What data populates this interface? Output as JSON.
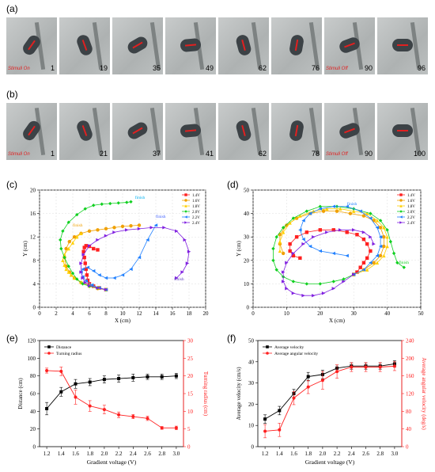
{
  "panels": {
    "a": "(a)",
    "b": "(b)",
    "c": "(c)",
    "d": "(d)",
    "e": "(e)",
    "f": "(f)"
  },
  "frames_a": {
    "numbers": [
      "1",
      "19",
      "35",
      "49",
      "62",
      "76",
      "90",
      "96"
    ],
    "stim_on": "Stimuli On",
    "stim_off": "Stimuli Off",
    "stim_on_index": 0,
    "stim_off_index": 6
  },
  "frames_b": {
    "numbers": [
      "1",
      "21",
      "37",
      "41",
      "62",
      "78",
      "90",
      "100"
    ],
    "stim_on": "Stimuli On",
    "stim_off": "Stimuli Off",
    "stim_on_index": 0,
    "stim_off_index": 6
  },
  "chart_data": [
    {
      "id": "c",
      "type": "scatter",
      "xlabel": "X (cm)",
      "ylabel": "Y (cm)",
      "xlim": [
        0,
        20
      ],
      "ylim": [
        0,
        20
      ],
      "xticks": [
        "0",
        "2",
        "4",
        "6",
        "8",
        "10",
        "12",
        "14",
        "16",
        "18",
        "20"
      ],
      "yticks": [
        "0",
        "4",
        "8",
        "12",
        "16",
        "20"
      ],
      "legend_position": "top-right",
      "annotations": [
        {
          "text": "finish",
          "x": 11.5,
          "y": 18.5,
          "color": "#00b0f0"
        },
        {
          "text": "finish",
          "x": 4.0,
          "y": 13.8,
          "color": "#f0a000"
        },
        {
          "text": "finish",
          "x": 14.0,
          "y": 15.3,
          "color": "#4060ff"
        },
        {
          "text": "finish",
          "x": 16.2,
          "y": 4.6,
          "color": "#6040c0"
        }
      ],
      "series": [
        {
          "name": "1.4V",
          "color": "#ff2020",
          "marker": "square",
          "x": [
            8.0,
            7.2,
            6.5,
            6.0,
            5.8,
            5.7,
            5.6,
            5.5,
            5.4,
            5.3,
            5.4,
            5.6,
            6.0,
            6.5,
            7.0
          ],
          "y": [
            3.0,
            3.3,
            3.6,
            4.0,
            4.6,
            5.5,
            6.5,
            7.5,
            8.5,
            9.5,
            10.2,
            10.5,
            10.4,
            10.0,
            9.8
          ]
        },
        {
          "name": "1.6V",
          "color": "#f0a000",
          "marker": "circle",
          "x": [
            8.0,
            7.0,
            6.0,
            5.0,
            4.2,
            3.6,
            3.2,
            3.0,
            3.2,
            3.6,
            4.2,
            5.0,
            6.0,
            7.0,
            8.0,
            9.0,
            10.0,
            11.0,
            12.0
          ],
          "y": [
            3.0,
            3.2,
            3.6,
            4.2,
            5.0,
            6.0,
            7.0,
            8.5,
            10.0,
            11.2,
            12.0,
            12.6,
            13.0,
            13.2,
            13.4,
            13.6,
            13.8,
            13.9,
            14.0
          ]
        },
        {
          "name": "1.8V",
          "color": "#ffd000",
          "marker": "triangle",
          "x": [
            8.0,
            7.0,
            6.0,
            5.0,
            4.2,
            3.8,
            3.5,
            3.2,
            3.0,
            2.8,
            3.0,
            3.5,
            4.0,
            4.5,
            5.0
          ],
          "y": [
            3.0,
            3.4,
            3.8,
            4.3,
            5.0,
            5.5,
            6.0,
            6.5,
            7.2,
            8.0,
            9.0,
            10.0,
            11.0,
            12.0,
            12.6
          ]
        },
        {
          "name": "2.0V",
          "color": "#10d020",
          "marker": "diamond",
          "x": [
            8.0,
            7.0,
            6.0,
            5.2,
            4.5,
            4.0,
            3.5,
            3.0,
            2.6,
            2.5,
            2.8,
            3.5,
            4.5,
            5.5,
            6.5,
            7.5,
            8.5,
            9.5,
            10.5,
            11.0
          ],
          "y": [
            3.0,
            3.3,
            3.6,
            4.0,
            4.8,
            5.8,
            7.0,
            8.5,
            10.0,
            11.5,
            13.0,
            14.5,
            15.8,
            16.8,
            17.4,
            17.6,
            17.7,
            17.8,
            17.9,
            18.0
          ]
        },
        {
          "name": "2.2V",
          "color": "#2080ff",
          "marker": "triangle-left",
          "x": [
            8.0,
            7.2,
            6.3,
            5.6,
            5.2,
            5.0,
            5.2,
            5.8,
            6.5,
            7.2,
            8.0,
            9.0,
            10.0,
            11.0,
            12.0,
            13.0,
            14.0
          ],
          "y": [
            3.0,
            3.3,
            3.8,
            4.5,
            5.2,
            6.0,
            6.5,
            6.8,
            6.2,
            5.5,
            5.0,
            5.0,
            5.5,
            6.5,
            8.5,
            11.5,
            14.0
          ]
        },
        {
          "name": "2.4V",
          "color": "#8020e0",
          "marker": "triangle-right",
          "x": [
            8.0,
            7.0,
            6.0,
            5.5,
            5.2,
            5.0,
            5.0,
            5.3,
            6.0,
            7.0,
            8.0,
            9.0,
            10.5,
            12.0,
            13.5,
            15.0,
            16.5,
            17.5,
            18.0,
            17.8,
            17.2,
            16.5
          ],
          "y": [
            3.0,
            3.3,
            3.7,
            4.2,
            5.0,
            6.0,
            7.5,
            9.0,
            10.5,
            11.5,
            12.2,
            12.8,
            13.2,
            13.4,
            13.6,
            13.6,
            13.0,
            11.5,
            9.5,
            7.5,
            6.0,
            5.0
          ]
        }
      ]
    },
    {
      "id": "d",
      "type": "scatter",
      "xlabel": "X (cm)",
      "ylabel": "Y (cm)",
      "xlim": [
        0,
        50
      ],
      "ylim": [
        0,
        50
      ],
      "xticks": [
        "0",
        "10",
        "20",
        "30",
        "40",
        "50"
      ],
      "yticks": [
        "0",
        "10",
        "20",
        "30",
        "40",
        "50"
      ],
      "legend_position": "top-right",
      "annotations": [
        {
          "text": "finish",
          "x": 28,
          "y": 43.5,
          "color": "#2080ff"
        },
        {
          "text": "finish",
          "x": 43.5,
          "y": 18.5,
          "color": "#10d020"
        }
      ],
      "series": [
        {
          "name": "1.4V",
          "color": "#ff2020",
          "marker": "square",
          "x": [
            30,
            31,
            32,
            33,
            34,
            35,
            34,
            33,
            31,
            28,
            24,
            20,
            16,
            13,
            11,
            11,
            12,
            14
          ],
          "y": [
            14,
            15,
            17,
            19,
            21,
            24,
            27,
            29,
            31,
            32,
            33,
            33,
            32,
            30,
            27,
            24,
            22,
            21
          ]
        },
        {
          "name": "1.6V",
          "color": "#f0a000",
          "marker": "circle",
          "x": [
            30,
            33,
            36,
            38,
            39,
            39,
            38,
            36,
            33,
            29,
            25,
            21,
            17,
            13,
            10,
            8,
            8,
            9
          ],
          "y": [
            14,
            16,
            19,
            22,
            26,
            30,
            34,
            37,
            39,
            40,
            41,
            41,
            40,
            38,
            35,
            31,
            27,
            23
          ]
        },
        {
          "name": "1.8V",
          "color": "#ffd000",
          "marker": "triangle",
          "x": [
            30,
            34,
            37,
            39,
            40,
            40,
            39,
            37,
            34,
            30,
            26,
            22,
            18,
            14,
            11,
            9,
            8,
            8
          ],
          "y": [
            14,
            16,
            19,
            22,
            26,
            30,
            34,
            37,
            40,
            41,
            42,
            42,
            41,
            39,
            36,
            32,
            28,
            24
          ]
        },
        {
          "name": "2.0V",
          "color": "#10d020",
          "marker": "diamond",
          "x": [
            30,
            27,
            24,
            20,
            16,
            12,
            9,
            7,
            6,
            6,
            7,
            9,
            12,
            16,
            20,
            25,
            30,
            35,
            38,
            40,
            41,
            42,
            43,
            45
          ],
          "y": [
            14,
            12,
            11,
            10,
            10,
            11,
            13,
            16,
            20,
            25,
            30,
            34,
            38,
            41,
            43,
            43,
            42,
            40,
            37,
            33,
            28,
            23,
            19,
            17
          ]
        },
        {
          "name": "2.2V",
          "color": "#2080ff",
          "marker": "triangle-left",
          "x": [
            30,
            33,
            35,
            37,
            38,
            38,
            37,
            35,
            32,
            28,
            24,
            20,
            17,
            15,
            14,
            15,
            17,
            20,
            24,
            28
          ],
          "y": [
            14,
            16,
            19,
            22,
            26,
            30,
            34,
            38,
            41,
            43,
            43,
            42,
            40,
            37,
            33,
            29,
            26,
            24,
            23,
            22
          ]
        },
        {
          "name": "2.4V",
          "color": "#8020e0",
          "marker": "triangle-right",
          "x": [
            30,
            27,
            24,
            21,
            18,
            15,
            12,
            10,
            9,
            9,
            10,
            12,
            15,
            18,
            22,
            26,
            30,
            33,
            35,
            36
          ],
          "y": [
            14,
            11,
            8,
            6,
            5,
            5,
            6,
            8,
            11,
            15,
            19,
            23,
            27,
            30,
            32,
            33,
            33,
            32,
            30,
            27
          ]
        }
      ]
    },
    {
      "id": "e",
      "type": "line",
      "xlabel": "Gradient voltage (V)",
      "ylabel": "Distance (cm)",
      "y2label": "Turning radius (cm)",
      "x": [
        1.2,
        1.4,
        1.6,
        1.8,
        2.0,
        2.2,
        2.4,
        2.6,
        2.8,
        3.0
      ],
      "xticks": [
        "1.2",
        "1.4",
        "1.6",
        "1.8",
        "2.0",
        "2.2",
        "2.4",
        "2.6",
        "2.8",
        "3.0"
      ],
      "ylim": [
        0,
        120
      ],
      "yticks": [
        "0",
        "20",
        "40",
        "60",
        "80",
        "100",
        "120"
      ],
      "y2lim": [
        0,
        30
      ],
      "y2ticks": [
        "0",
        "5",
        "10",
        "15",
        "20",
        "25",
        "30"
      ],
      "legend_position": "top-left",
      "series": [
        {
          "name": "Distance",
          "color": "#000000",
          "marker": "square",
          "axis": "left",
          "values": [
            43,
            62,
            71,
            73,
            76,
            77,
            78,
            79,
            79,
            80
          ],
          "errors": [
            7,
            5,
            5,
            4,
            4,
            4,
            4,
            3,
            3,
            3
          ]
        },
        {
          "name": "Turning radius",
          "color": "#ff2020",
          "marker": "circle",
          "axis": "right",
          "values": [
            21.5,
            21.3,
            14.0,
            11.5,
            10.5,
            9.0,
            8.5,
            8.0,
            5.3,
            5.3
          ],
          "errors": [
            0.7,
            1.2,
            2.0,
            1.5,
            1.2,
            0.8,
            0.6,
            0.6,
            0.4,
            0.5
          ]
        }
      ]
    },
    {
      "id": "f",
      "type": "line",
      "xlabel": "Gradient voltage (V)",
      "ylabel": "Average velocity (cm/s)",
      "y2label": "Average angular velocity (deg/s)",
      "x": [
        1.2,
        1.4,
        1.6,
        1.8,
        2.0,
        2.2,
        2.4,
        2.6,
        2.8,
        3.0
      ],
      "xticks": [
        "1.2",
        "1.4",
        "1.6",
        "1.8",
        "2.0",
        "2.2",
        "2.4",
        "2.6",
        "2.8",
        "3.0"
      ],
      "ylim": [
        0,
        50
      ],
      "yticks": [
        "0",
        "10",
        "20",
        "30",
        "40",
        "50"
      ],
      "y2lim": [
        0,
        240
      ],
      "y2ticks": [
        "0",
        "40",
        "80",
        "120",
        "160",
        "200",
        "240"
      ],
      "legend_position": "top-left",
      "series": [
        {
          "name": "Average velocity",
          "color": "#000000",
          "marker": "square",
          "axis": "left",
          "values": [
            13,
            17,
            25,
            33,
            34,
            37,
            38,
            38,
            38,
            39
          ],
          "errors": [
            2,
            2,
            2,
            2,
            2,
            1.5,
            1.5,
            1.5,
            1.5,
            1.5
          ]
        },
        {
          "name": "Average angular velocity",
          "color": "#ff2020",
          "marker": "circle",
          "axis": "right",
          "values": [
            35,
            38,
            110,
            135,
            150,
            170,
            180,
            180,
            180,
            182
          ],
          "errors": [
            15,
            15,
            15,
            15,
            20,
            15,
            10,
            10,
            10,
            10
          ]
        }
      ]
    }
  ]
}
